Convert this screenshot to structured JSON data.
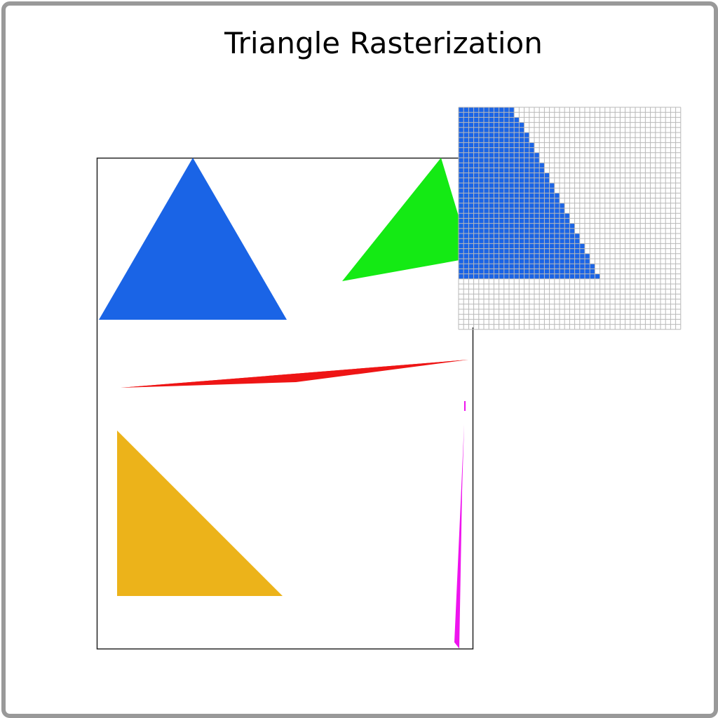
{
  "title": "Triangle Rasterization",
  "shapes": {
    "blue_triangle": {
      "color": "#1a64e6"
    },
    "green_triangle": {
      "color": "#14ea14"
    },
    "red_sliver": {
      "color": "#ee1515"
    },
    "yellow_triangle": {
      "color": "#ecb31a"
    },
    "magenta_sliver": {
      "color": "#ee14ee"
    }
  },
  "zoom_inset": {
    "fill_color": "#1a64e6",
    "grid_color": "#b8b8b8"
  }
}
